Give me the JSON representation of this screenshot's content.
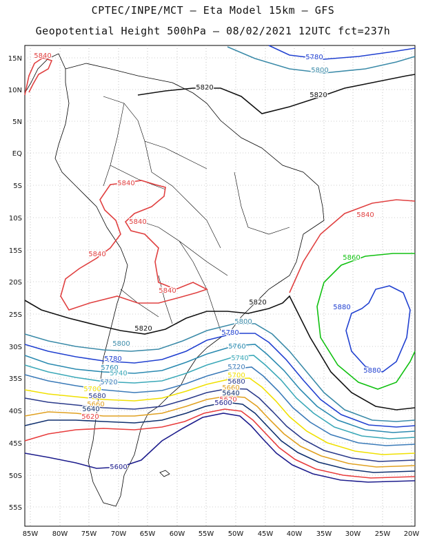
{
  "header": {
    "line1": "CPTEC/INPE/MCT –  Eta Model 15km – GFS",
    "line2": "Geopotential Height 500hPa – 08/02/2021 12UTC fct=237h"
  },
  "axes": {
    "lat_labels": [
      "15N",
      "10N",
      "5N",
      "EQ",
      "5S",
      "10S",
      "15S",
      "20S",
      "25S",
      "30S",
      "35S",
      "40S",
      "45S",
      "50S",
      "55S"
    ],
    "lon_labels": [
      "85W",
      "80W",
      "75W",
      "70W",
      "65W",
      "60W",
      "55W",
      "50W",
      "45W",
      "40W",
      "35W",
      "30W",
      "25W",
      "20W"
    ]
  },
  "contour_colors": {
    "5600": "#1c1c8c",
    "5620": "#e83c3c",
    "5640": "#0f2f6e",
    "5660": "#e0a020",
    "5680": "#2a3a8a",
    "5700": "#f0e000",
    "5720": "#3a7ab8",
    "5740": "#3aa8b8",
    "5760": "#2a8ab0",
    "5780": "#2040d0",
    "5800": "#3a8aa8",
    "5820": "#111111",
    "5840": "#e04040",
    "5860": "#10c010",
    "5880": "#2040d0"
  },
  "contour_labels": [
    {
      "id": "c5840-a",
      "text": "5840",
      "level": "5840"
    },
    {
      "id": "c5780-a",
      "text": "5780",
      "level": "5780"
    },
    {
      "id": "c5800-a",
      "text": "5800",
      "level": "5800"
    },
    {
      "id": "c5820-a",
      "text": "5820",
      "level": "5820"
    },
    {
      "id": "c5820-b",
      "text": "5820",
      "level": "5820"
    },
    {
      "id": "c5840-b",
      "text": "5840",
      "level": "5840"
    },
    {
      "id": "c5840-c",
      "text": "5840",
      "level": "5840"
    },
    {
      "id": "c5840-d",
      "text": "5840",
      "level": "5840"
    },
    {
      "id": "c5840-e",
      "text": "5840",
      "level": "5840"
    },
    {
      "id": "c5840-f",
      "text": "5840",
      "level": "5840"
    },
    {
      "id": "c5860-a",
      "text": "5860",
      "level": "5860"
    },
    {
      "id": "c5880-a",
      "text": "5880",
      "level": "5880"
    },
    {
      "id": "c5880-b",
      "text": "5880",
      "level": "5880"
    },
    {
      "id": "c5820-c",
      "text": "5820",
      "level": "5820"
    },
    {
      "id": "c5820-d",
      "text": "5820",
      "level": "5820"
    },
    {
      "id": "c5800-b",
      "text": "5800",
      "level": "5800"
    },
    {
      "id": "c5780-b",
      "text": "5780",
      "level": "5780"
    },
    {
      "id": "c5760-a",
      "text": "5760",
      "level": "5760"
    },
    {
      "id": "c5740-a",
      "text": "5740",
      "level": "5740"
    },
    {
      "id": "c5720-a",
      "text": "5720",
      "level": "5720"
    },
    {
      "id": "c5700-a",
      "text": "5700",
      "level": "5700"
    },
    {
      "id": "c5680-a",
      "text": "5680",
      "level": "5680"
    },
    {
      "id": "c5660-a",
      "text": "5660",
      "level": "5660"
    },
    {
      "id": "c5640-a",
      "text": "5640",
      "level": "5640"
    },
    {
      "id": "c5620-a",
      "text": "5620",
      "level": "5620"
    },
    {
      "id": "c5600-a",
      "text": "5600",
      "level": "5600"
    },
    {
      "id": "c5800-c",
      "text": "5800",
      "level": "5800"
    },
    {
      "id": "c5780-c",
      "text": "5780",
      "level": "5780"
    },
    {
      "id": "c5760-b",
      "text": "5760",
      "level": "5760"
    },
    {
      "id": "c5740-b",
      "text": "5740",
      "level": "5740"
    },
    {
      "id": "c5720-b",
      "text": "5720",
      "level": "5720"
    },
    {
      "id": "c5700-b",
      "text": "5700",
      "level": "5700"
    },
    {
      "id": "c5680-b",
      "text": "5680",
      "level": "5680"
    },
    {
      "id": "c5660-b",
      "text": "5660",
      "level": "5660"
    },
    {
      "id": "c5640-b",
      "text": "5640",
      "level": "5640"
    },
    {
      "id": "c5620-b",
      "text": "5620",
      "level": "5620"
    },
    {
      "id": "c5600-b",
      "text": "5600",
      "level": "5600"
    },
    {
      "id": "c5600-c",
      "text": "5600",
      "level": "5600"
    }
  ]
}
